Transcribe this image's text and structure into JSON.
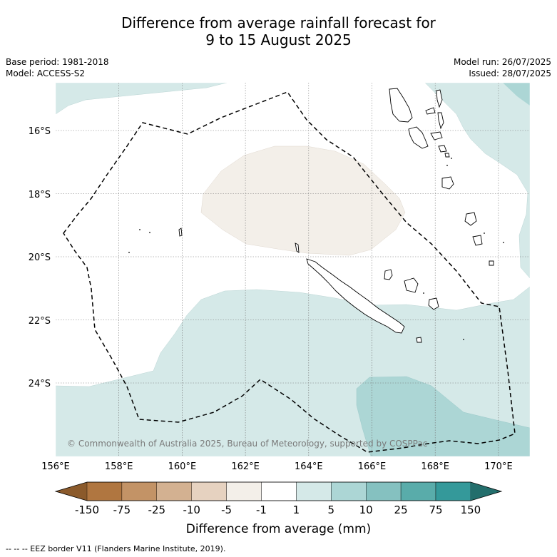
{
  "title": {
    "line1": "Difference from average rainfall forecast for",
    "line2": "9 to 15 August 2025"
  },
  "meta": {
    "base_period": "Base period: 1981-2018",
    "model": "Model: ACCESS-S2",
    "model_run": "Model run: 26/07/2025",
    "issued": "Issued: 28/07/2025"
  },
  "map": {
    "lat_labels": [
      "16°S",
      "18°S",
      "20°S",
      "22°S",
      "24°S"
    ],
    "lon_labels": [
      "156°E",
      "158°E",
      "160°E",
      "162°E",
      "164°E",
      "166°E",
      "168°E",
      "170°E"
    ],
    "copyright": "© Commonwealth of Australia 2025, Bureau of Meteorology, supported by COSPPac",
    "colors": {
      "decrease_slight": "#f3efe9",
      "increase_1_5": "#d5e9e8",
      "increase_5_10": "#acd6d5",
      "eez_line": "#000000"
    }
  },
  "colorbar": {
    "tick_labels": [
      "-150",
      "-75",
      "-25",
      "-10",
      "-5",
      "-1",
      "1",
      "5",
      "10",
      "25",
      "75",
      "150"
    ],
    "colors": [
      "#8b5a2b",
      "#b07640",
      "#c39366",
      "#d3b191",
      "#e6d2c0",
      "#f3efe9",
      "#ffffff",
      "#d5e9e8",
      "#acd6d5",
      "#85c1c0",
      "#59acaa",
      "#34999a",
      "#236e6c"
    ],
    "label": "Difference from average (mm)"
  },
  "footnote": "-- -- -- EEZ border V11 (Flanders Marine Institute, 2019)."
}
